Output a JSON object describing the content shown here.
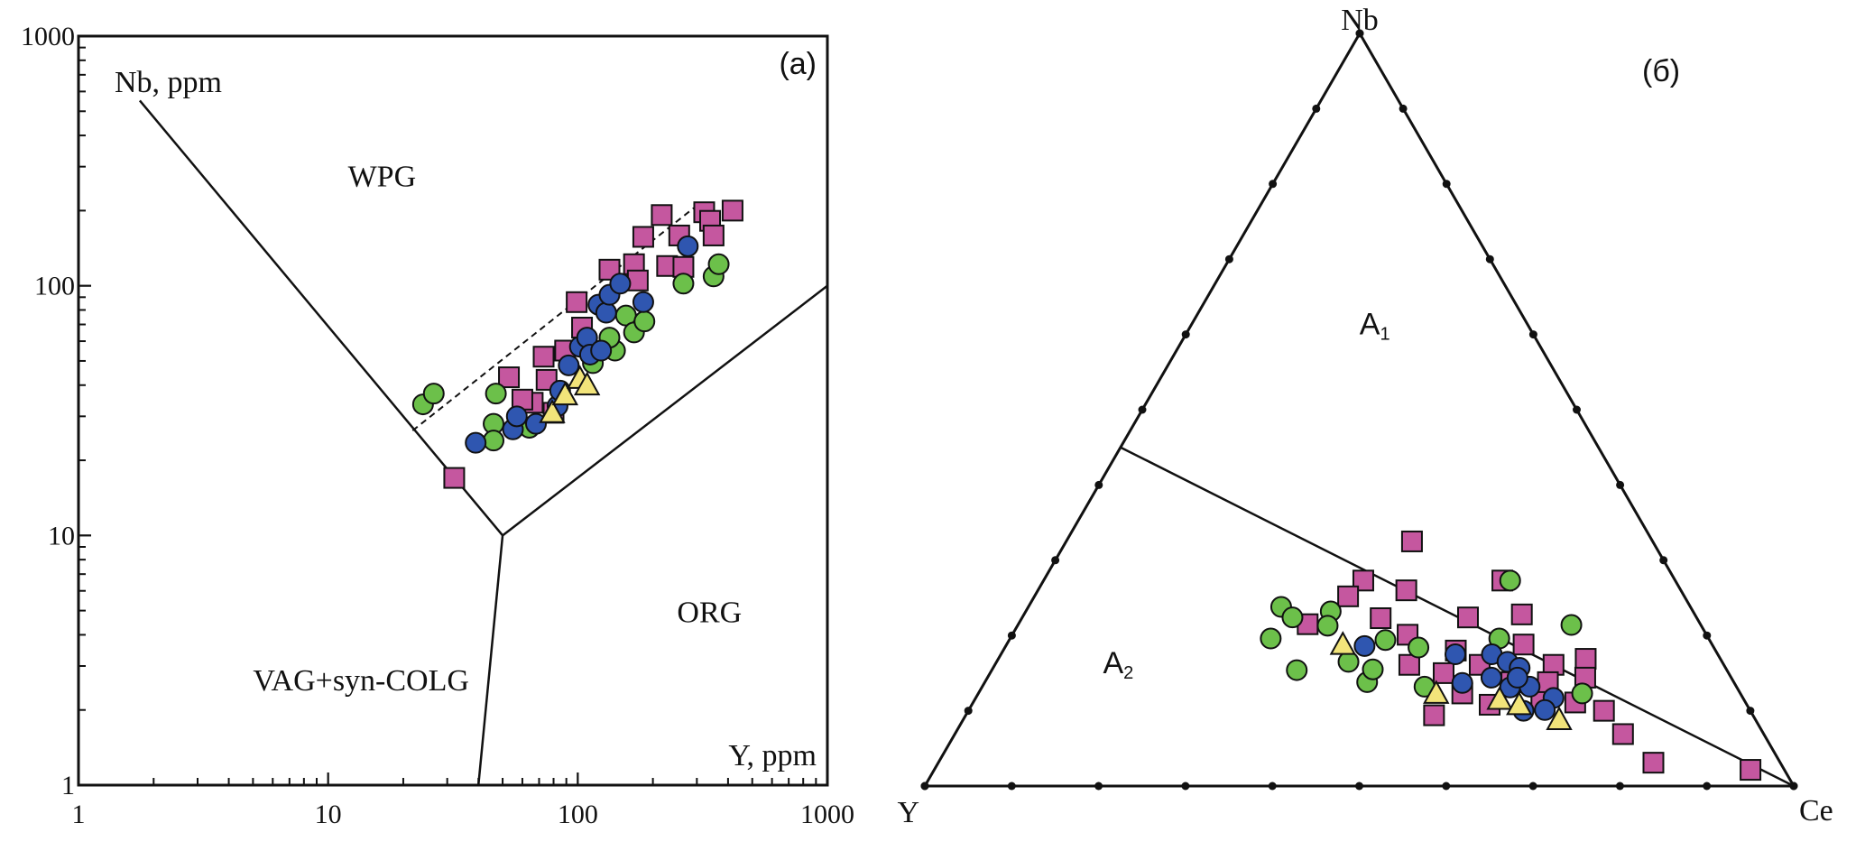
{
  "colors": {
    "pink_square": "#c5579f",
    "green_circle": "#6cc04a",
    "blue_circle": "#2f56b0",
    "yellow_triangle": "#f2e47a",
    "line": "#111111"
  },
  "chart_data": [
    {
      "type": "scatter",
      "panel_label": "(a)",
      "xlabel": "Y, ppm",
      "ylabel": "Nb, ppm",
      "xscale": "log",
      "yscale": "log",
      "xlim": [
        1,
        1000
      ],
      "ylim": [
        1,
        1000
      ],
      "x_ticks": [
        "1",
        "10",
        "100",
        "1000"
      ],
      "y_ticks": [
        "1",
        "10",
        "100",
        "1000"
      ],
      "grid": false,
      "regions": [
        {
          "label": "WPG",
          "at": [
            12,
            250
          ]
        },
        {
          "label": "ORG",
          "at": [
            250,
            4.5
          ]
        },
        {
          "label": "VAG+syn-COLG",
          "at": [
            5,
            2.4
          ]
        }
      ],
      "boundaries": [
        {
          "style": "solid",
          "points": [
            [
              1.76,
              552
            ],
            [
              50,
              10
            ]
          ]
        },
        {
          "style": "solid",
          "points": [
            [
              50,
              10
            ],
            [
              1000,
              100
            ]
          ]
        },
        {
          "style": "solid",
          "points": [
            [
              50,
              10
            ],
            [
              40,
              1
            ]
          ]
        },
        {
          "style": "dashed",
          "points": [
            [
              21.8,
              26.3
            ],
            [
              308,
              214
            ]
          ]
        }
      ],
      "series": [
        {
          "marker": "square",
          "color": "#c5579f",
          "points": [
            [
              32,
              17
            ],
            [
              53,
              43
            ],
            [
              73,
              52
            ],
            [
              99,
              86
            ],
            [
              104,
              68
            ],
            [
              134,
              116
            ],
            [
              168,
              122
            ],
            [
              183,
              157
            ],
            [
              217,
              192
            ],
            [
              228,
              120
            ],
            [
              265,
              119
            ],
            [
              255,
              159
            ],
            [
              321,
              197
            ],
            [
              339,
              182
            ],
            [
              350,
              159
            ],
            [
              417,
              200
            ],
            [
              174,
              105
            ],
            [
              66,
              34
            ],
            [
              75,
              42
            ],
            [
              80,
              31
            ],
            [
              60,
              35
            ],
            [
              89,
              55
            ]
          ]
        },
        {
          "marker": "circle",
          "color": "#6cc04a",
          "points": [
            [
              24,
              33.5
            ],
            [
              26.5,
              37
            ],
            [
              46,
              28
            ],
            [
              46,
              24
            ],
            [
              47,
              37
            ],
            [
              64,
              27
            ],
            [
              141,
              55
            ],
            [
              156,
              76
            ],
            [
              168,
              65
            ],
            [
              185,
              72
            ],
            [
              265,
              102
            ],
            [
              350,
              109
            ],
            [
              367,
              122
            ],
            [
              115,
              49
            ],
            [
              134,
              62
            ]
          ]
        },
        {
          "marker": "circle",
          "color": "#2f56b0",
          "points": [
            [
              39,
              23.5
            ],
            [
              55,
              26.6
            ],
            [
              57,
              30
            ],
            [
              68,
              28
            ],
            [
              83,
              33
            ],
            [
              85,
              38
            ],
            [
              92,
              48
            ],
            [
              102,
              57
            ],
            [
              109,
              62
            ],
            [
              112,
              53
            ],
            [
              124,
              55
            ],
            [
              121,
              84
            ],
            [
              130,
              78
            ],
            [
              134,
              92
            ],
            [
              148,
              102
            ],
            [
              183,
              86
            ],
            [
              276,
              144
            ]
          ]
        },
        {
          "marker": "triangle",
          "color": "#f2e47a",
          "points": [
            [
              79,
              31
            ],
            [
              89,
              36.5
            ],
            [
              102,
              42.5
            ],
            [
              109,
              40
            ]
          ]
        }
      ]
    },
    {
      "type": "scatter",
      "subtype": "ternary",
      "panel_label": "(б)",
      "vertices": {
        "top": "Nb",
        "left": "Y",
        "right": "Ce"
      },
      "tick_step_percent": 10,
      "regions": [
        {
          "label": "A",
          "subscript": "1",
          "at": [
            0.6,
            0.2,
            0.2
          ]
        },
        {
          "label": "A",
          "subscript": "2",
          "at": [
            0.15,
            0.72,
            0.13
          ]
        }
      ],
      "boundaries": [
        {
          "style": "solid",
          "points": [
            [
              0.45,
              0.55,
              0.0
            ],
            [
              0.0,
              0.0,
              1.0
            ]
          ]
        }
      ],
      "point_order": [
        "Nb",
        "Y",
        "Ce"
      ],
      "series": [
        {
          "marker": "square",
          "color": "#c5579f",
          "points": [
            [
              0.325,
              0.277,
              0.398
            ],
            [
              0.273,
              0.359,
              0.368
            ],
            [
              0.252,
              0.387,
              0.361
            ],
            [
              0.215,
              0.452,
              0.333
            ],
            [
              0.223,
              0.364,
              0.413
            ],
            [
              0.26,
              0.316,
              0.424
            ],
            [
              0.201,
              0.344,
              0.455
            ],
            [
              0.161,
              0.362,
              0.477
            ],
            [
              0.224,
              0.263,
              0.513
            ],
            [
              0.273,
              0.199,
              0.528
            ],
            [
              0.228,
              0.199,
              0.573
            ],
            [
              0.188,
              0.217,
              0.595
            ],
            [
              0.094,
              0.367,
              0.539
            ],
            [
              0.169,
              0.155,
              0.676
            ],
            [
              0.144,
              0.168,
              0.688
            ],
            [
              0.101,
              0.17,
              0.73
            ],
            [
              0.069,
              0.162,
              0.769
            ],
            [
              0.031,
              0.146,
              0.823
            ],
            [
              0.0215,
              0.039,
              0.9395
            ],
            [
              0.108,
              0.296,
              0.596
            ],
            [
              0.161,
              0.196,
              0.643
            ],
            [
              0.115,
              0.233,
              0.652
            ],
            [
              0.18,
              0.299,
              0.521
            ],
            [
              0.15,
              0.328,
              0.522
            ],
            [
              0.111,
              0.196,
              0.693
            ],
            [
              0.161,
              0.281,
              0.558
            ],
            [
              0.138,
              0.256,
              0.606
            ],
            [
              0.123,
              0.32,
              0.557
            ],
            [
              0.138,
              0.214,
              0.648
            ]
          ]
        },
        {
          "marker": "circle",
          "color": "#6cc04a",
          "points": [
            [
              0.238,
              0.471,
              0.291
            ],
            [
              0.224,
              0.465,
              0.311
            ],
            [
              0.196,
              0.504,
              0.3
            ],
            [
              0.154,
              0.495,
              0.351
            ],
            [
              0.232,
              0.417,
              0.351
            ],
            [
              0.213,
              0.43,
              0.357
            ],
            [
              0.165,
              0.43,
              0.405
            ],
            [
              0.138,
              0.422,
              0.44
            ],
            [
              0.155,
              0.407,
              0.438
            ],
            [
              0.194,
              0.373,
              0.433
            ],
            [
              0.132,
              0.359,
              0.509
            ],
            [
              0.214,
              0.149,
              0.637
            ],
            [
              0.273,
              0.19,
              0.537
            ],
            [
              0.196,
              0.241,
              0.563
            ],
            [
              0.123,
              0.182,
              0.695
            ],
            [
              0.184,
              0.34,
              0.476
            ]
          ]
        },
        {
          "marker": "circle",
          "color": "#2f56b0",
          "points": [
            [
              0.186,
              0.401,
              0.413
            ],
            [
              0.175,
              0.302,
              0.523
            ],
            [
              0.137,
              0.313,
              0.55
            ],
            [
              0.175,
              0.26,
              0.565
            ],
            [
              0.165,
              0.247,
              0.588
            ],
            [
              0.157,
              0.237,
              0.606
            ],
            [
              0.144,
              0.276,
              0.58
            ],
            [
              0.131,
              0.261,
              0.608
            ],
            [
              0.132,
              0.238,
              0.63
            ],
            [
              0.144,
              0.246,
              0.61
            ],
            [
              0.117,
              0.218,
              0.665
            ],
            [
              0.101,
              0.236,
              0.663
            ],
            [
              0.1,
              0.261,
              0.639
            ]
          ]
        },
        {
          "marker": "triangle",
          "color": "#f2e47a",
          "points": [
            [
              0.188,
              0.425,
              0.387
            ],
            [
              0.123,
              0.35,
              0.527
            ],
            [
              0.115,
              0.281,
              0.604
            ],
            [
              0.108,
              0.262,
              0.63
            ],
            [
              0.088,
              0.226,
              0.686
            ]
          ]
        }
      ]
    }
  ]
}
